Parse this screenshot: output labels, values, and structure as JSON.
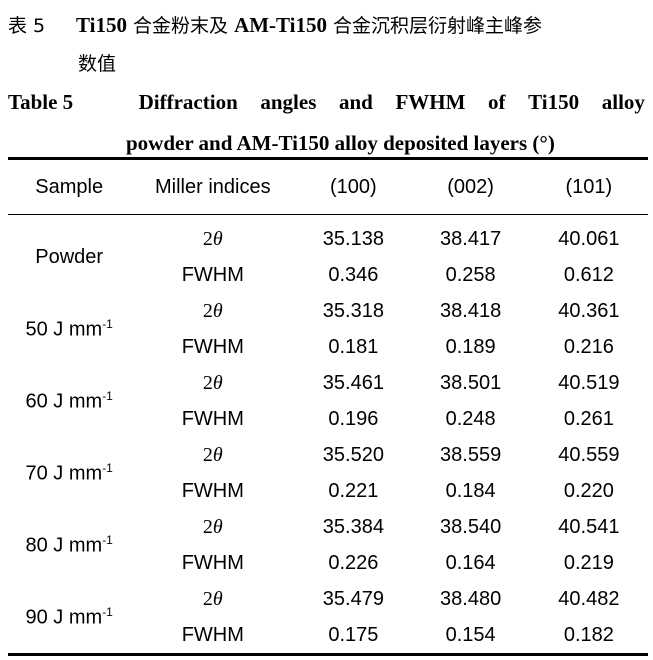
{
  "caption_cn": {
    "label": "表 5",
    "title_part1": "Ti150",
    "title_part2": " 合金粉末及 ",
    "title_part3": "AM-Ti150",
    "title_part4": " 合金沉积层衍射峰主峰参",
    "title_line2": "数值"
  },
  "caption_en": {
    "label": "Table 5",
    "words_line1": [
      "Diffraction",
      "angles",
      "and",
      "FWHM",
      "of",
      "Ti150",
      "alloy"
    ],
    "line2": "powder and AM-Ti150 alloy deposited layers (°)"
  },
  "table": {
    "headers": [
      "Sample",
      "Miller indices",
      "(100)",
      "(002)",
      "(101)"
    ],
    "row_labels": [
      "2θ",
      "FWHM"
    ],
    "groups": [
      {
        "sample": "Powder",
        "unit": "",
        "two_theta": [
          "35.138",
          "38.417",
          "40.061"
        ],
        "fwhm": [
          "0.346",
          "0.258",
          "0.612"
        ]
      },
      {
        "sample": "50 J mm",
        "unit": "-1",
        "two_theta": [
          "35.318",
          "38.418",
          "40.361"
        ],
        "fwhm": [
          "0.181",
          "0.189",
          "0.216"
        ]
      },
      {
        "sample": "60 J mm",
        "unit": "-1",
        "two_theta": [
          "35.461",
          "38.501",
          "40.519"
        ],
        "fwhm": [
          "0.196",
          "0.248",
          "0.261"
        ]
      },
      {
        "sample": "70 J mm",
        "unit": "-1",
        "two_theta": [
          "35.520",
          "38.559",
          "40.559"
        ],
        "fwhm": [
          "0.221",
          "0.184",
          "0.220"
        ]
      },
      {
        "sample": "80 J mm",
        "unit": "-1",
        "two_theta": [
          "35.384",
          "38.540",
          "40.541"
        ],
        "fwhm": [
          "0.226",
          "0.164",
          "0.219"
        ]
      },
      {
        "sample": "90 J mm",
        "unit": "-1",
        "two_theta": [
          "35.479",
          "38.480",
          "40.482"
        ],
        "fwhm": [
          "0.175",
          "0.154",
          "0.182"
        ]
      }
    ]
  }
}
